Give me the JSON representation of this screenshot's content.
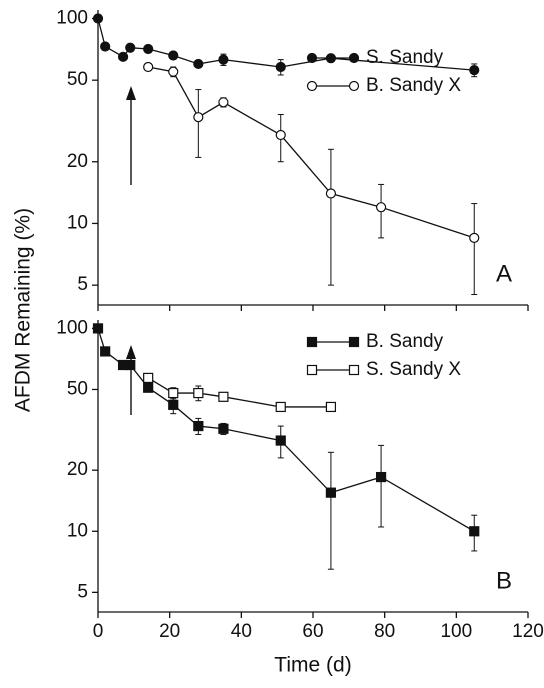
{
  "chart_data": [
    {
      "type": "line",
      "ylabel": "AFDM Remaining (%)",
      "panel_label": "A",
      "log_y": true,
      "xlim": [
        0,
        120
      ],
      "xticks": [
        0,
        20,
        40,
        60,
        80,
        100,
        120
      ],
      "show_xtick_labels": false,
      "ylim": [
        4,
        110
      ],
      "yticks": [
        5,
        10,
        20,
        50,
        100
      ],
      "legend": "upper right",
      "series": [
        {
          "name": "S. Sandy",
          "color": "#111111",
          "marker": "circle",
          "filled": true,
          "x": [
            0,
            2,
            7,
            9,
            14,
            21,
            28,
            35,
            51,
            65,
            105
          ],
          "values": [
            100,
            73,
            65,
            72,
            71,
            66,
            60,
            63,
            58,
            64,
            56
          ],
          "errors": [
            null,
            null,
            null,
            null,
            null,
            null,
            null,
            4,
            5,
            null,
            4
          ]
        },
        {
          "name": "B. Sandy X",
          "color": "#111111",
          "marker": "circle",
          "filled": false,
          "x": [
            14,
            21,
            28,
            35,
            51,
            65,
            79,
            105
          ],
          "values": [
            58,
            55,
            33,
            39,
            27,
            14,
            12,
            8.5
          ],
          "errors": [
            null,
            3,
            12,
            2,
            7,
            9,
            3.5,
            4
          ]
        }
      ]
    },
    {
      "type": "line",
      "xlabel": "Time (d)",
      "panel_label": "B",
      "log_y": true,
      "xlim": [
        0,
        120
      ],
      "xticks": [
        0,
        20,
        40,
        60,
        80,
        100,
        120
      ],
      "show_xtick_labels": true,
      "ylim": [
        4,
        110
      ],
      "yticks": [
        5,
        10,
        20,
        50,
        100
      ],
      "legend": "upper right",
      "series": [
        {
          "name": "B. Sandy",
          "color": "#111111",
          "marker": "square",
          "filled": true,
          "x": [
            0,
            2,
            7,
            9,
            14,
            21,
            28,
            35,
            51,
            65,
            79,
            105
          ],
          "values": [
            100,
            77,
            66,
            66,
            51,
            42,
            33,
            32,
            28,
            15.5,
            18.5,
            10
          ],
          "errors": [
            null,
            null,
            null,
            null,
            null,
            4,
            3,
            2,
            5,
            9,
            8,
            2
          ]
        },
        {
          "name": "S. Sandy X",
          "color": "#111111",
          "marker": "square",
          "filled": false,
          "x": [
            14,
            21,
            28,
            35,
            51,
            65
          ],
          "values": [
            57,
            48,
            48,
            46,
            41,
            41
          ],
          "errors": [
            null,
            3,
            4,
            null,
            2,
            null
          ]
        }
      ]
    }
  ]
}
